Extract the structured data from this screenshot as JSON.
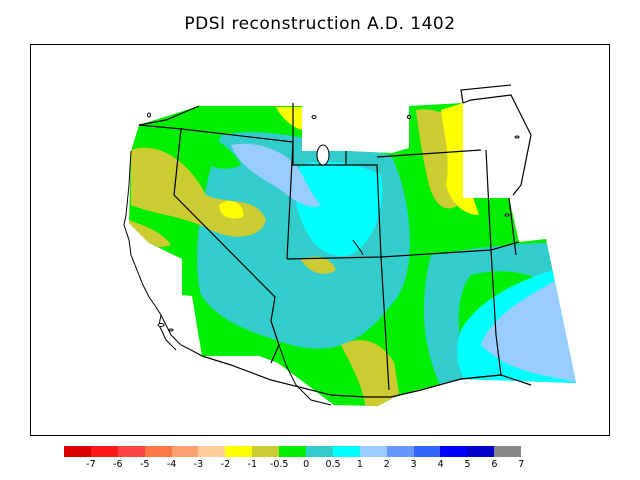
{
  "title": "PDSI reconstruction A.D. 1402",
  "map": {
    "region": "western-united-states",
    "colors": {
      "cyan": "#00ffff",
      "teal": "#33cccc",
      "green": "#00ee00",
      "olive": "#cccc33",
      "yellow": "#ffff00",
      "lightblue": "#99ccff",
      "lake": "#ffffff"
    }
  },
  "legend": {
    "colors": [
      "#dd0000",
      "#ff1a1a",
      "#ff4444",
      "#ff7744",
      "#ffa070",
      "#ffcc99",
      "#ffff00",
      "#cccc33",
      "#00ee00",
      "#33cccc",
      "#00ffff",
      "#99ccff",
      "#6699ff",
      "#3366ff",
      "#0000ff",
      "#0000cc",
      "#888888"
    ],
    "tick_labels": [
      "-7",
      "-6",
      "-5",
      "-4",
      "-3",
      "-2",
      "-1",
      "-0.5",
      "0",
      "0.5",
      "1",
      "2",
      "3",
      "4",
      "5",
      "6",
      "7"
    ]
  }
}
